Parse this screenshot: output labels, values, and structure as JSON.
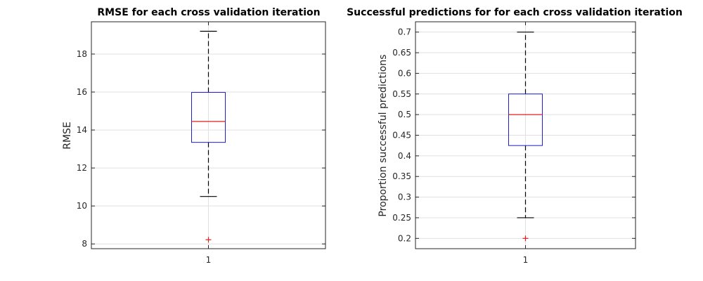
{
  "chart_data": [
    {
      "type": "box",
      "title": "RMSE for each cross validation iteration",
      "ylabel": "RMSE",
      "xlabel": "",
      "categories": [
        "1"
      ],
      "ylim": [
        7.75,
        19.7
      ],
      "yticks": [
        "8",
        "10",
        "12",
        "14",
        "16",
        "18"
      ],
      "grid": true,
      "box": {
        "whisker_low": 10.5,
        "q1": 13.35,
        "median": 14.45,
        "q3": 15.98,
        "whisker_high": 19.2,
        "outliers": [
          8.22
        ]
      }
    },
    {
      "type": "box",
      "title": "Successful predictions for for each cross validation iteration",
      "ylabel": "Proportion successful predictions",
      "xlabel": "",
      "categories": [
        "1"
      ],
      "ylim": [
        0.175,
        0.725
      ],
      "yticks": [
        "0.2",
        "0.25",
        "0.3",
        "0.35",
        "0.4",
        "0.45",
        "0.5",
        "0.55",
        "0.6",
        "0.65",
        "0.7"
      ],
      "grid": true,
      "box": {
        "whisker_low": 0.25,
        "q1": 0.425,
        "median": 0.5,
        "q3": 0.55,
        "whisker_high": 0.7,
        "outliers": [
          0.2
        ]
      }
    }
  ],
  "colors": {
    "box": "#1f1fcc",
    "median": "#e02020",
    "outlier": "#e02020",
    "whisker": "#000000"
  }
}
